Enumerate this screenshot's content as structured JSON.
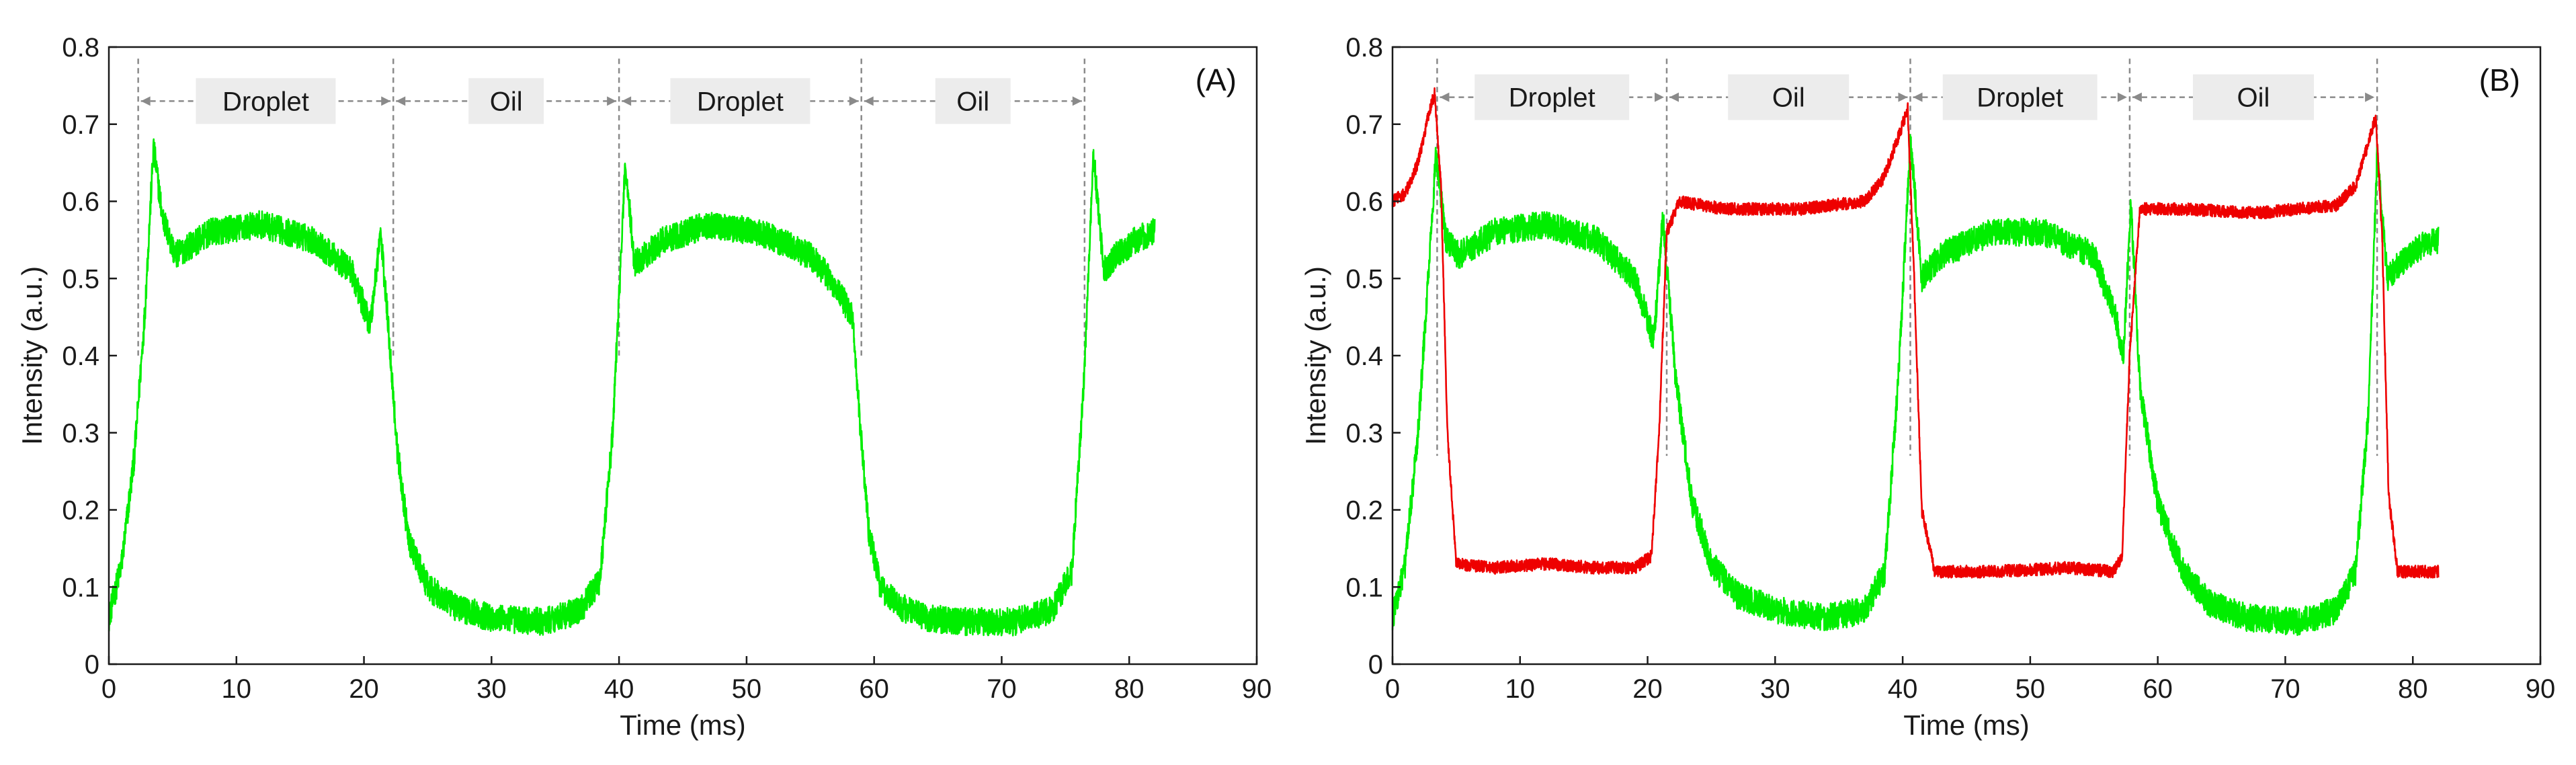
{
  "chart_data": [
    {
      "panel": "(A)",
      "type": "line",
      "xlabel": "Time (ms)",
      "ylabel": "Intensity (a.u.)",
      "xlim": [
        0,
        90
      ],
      "ylim": [
        0,
        0.8
      ],
      "xticks": [
        "0",
        "10",
        "20",
        "30",
        "40",
        "50",
        "60",
        "70",
        "80",
        "90"
      ],
      "yticks": [
        "0",
        "0.1",
        "0.2",
        "0.3",
        "0.4",
        "0.5",
        "0.6",
        "0.7",
        "0.8"
      ],
      "grid": false,
      "regions": [
        {
          "label": "Droplet",
          "start": 2.3,
          "end": 22.3
        },
        {
          "label": "Oil",
          "start": 22.3,
          "end": 40.0
        },
        {
          "label": "Droplet",
          "start": 40.0,
          "end": 59.0
        },
        {
          "label": "Oil",
          "start": 59.0,
          "end": 76.5
        }
      ],
      "region_arrow_y": 0.73,
      "series": [
        {
          "name": "green",
          "color": "#00ee00",
          "noise": 0.018,
          "x": [
            0,
            1,
            2,
            2.8,
            3.5,
            4.2,
            5.2,
            8,
            12,
            16,
            19,
            20.5,
            21.3,
            21.9,
            22.6,
            23.5,
            25,
            27,
            30,
            34,
            37,
            38.5,
            39.5,
            40.5,
            41.2,
            42,
            43.5,
            47,
            51,
            55,
            57,
            58.3,
            58.9,
            59.6,
            60.5,
            62,
            64,
            67,
            71,
            74,
            75.5,
            76.4,
            77.2,
            78,
            79,
            80.5,
            82
          ],
          "y": [
            0.06,
            0.13,
            0.27,
            0.45,
            0.67,
            0.58,
            0.53,
            0.56,
            0.57,
            0.55,
            0.51,
            0.44,
            0.56,
            0.44,
            0.28,
            0.16,
            0.1,
            0.075,
            0.06,
            0.055,
            0.07,
            0.11,
            0.3,
            0.65,
            0.52,
            0.53,
            0.55,
            0.57,
            0.56,
            0.53,
            0.49,
            0.45,
            0.31,
            0.17,
            0.1,
            0.075,
            0.06,
            0.055,
            0.055,
            0.07,
            0.12,
            0.35,
            0.66,
            0.51,
            0.53,
            0.55,
            0.56
          ]
        }
      ]
    },
    {
      "panel": "(B)",
      "type": "line",
      "xlabel": "Time (ms)",
      "ylabel": "Intensity (a.u.)",
      "xlim": [
        0,
        90
      ],
      "ylim": [
        0,
        0.8
      ],
      "xticks": [
        "0",
        "10",
        "20",
        "30",
        "40",
        "50",
        "60",
        "70",
        "80",
        "90"
      ],
      "yticks": [
        "0",
        "0.1",
        "0.2",
        "0.3",
        "0.4",
        "0.5",
        "0.6",
        "0.7",
        "0.8"
      ],
      "grid": false,
      "regions": [
        {
          "label": "Droplet",
          "start": 3.5,
          "end": 21.5
        },
        {
          "label": "Oil",
          "start": 21.5,
          "end": 40.6
        },
        {
          "label": "Droplet",
          "start": 40.6,
          "end": 57.8
        },
        {
          "label": "Oil",
          "start": 57.8,
          "end": 77.2
        }
      ],
      "region_arrow_y": 0.735,
      "series": [
        {
          "name": "green",
          "color": "#00ee00",
          "noise": 0.018,
          "x": [
            0,
            1,
            2,
            2.8,
            3.4,
            4.2,
            5.2,
            8,
            12,
            16,
            19,
            20.5,
            21.2,
            22.2,
            23.5,
            25,
            27,
            30,
            34,
            37,
            38.6,
            39.7,
            40.6,
            41.5,
            43,
            47,
            51,
            55,
            56.7,
            57.3,
            57.9,
            58.6,
            60,
            62,
            64,
            67,
            71,
            74,
            75.5,
            76.5,
            77.2,
            78,
            79,
            80.5,
            82
          ],
          "y": [
            0.06,
            0.13,
            0.3,
            0.5,
            0.66,
            0.55,
            0.53,
            0.56,
            0.57,
            0.55,
            0.5,
            0.42,
            0.58,
            0.37,
            0.21,
            0.13,
            0.09,
            0.07,
            0.06,
            0.07,
            0.12,
            0.38,
            0.68,
            0.5,
            0.53,
            0.56,
            0.56,
            0.53,
            0.45,
            0.4,
            0.6,
            0.36,
            0.21,
            0.12,
            0.08,
            0.06,
            0.055,
            0.07,
            0.12,
            0.32,
            0.66,
            0.5,
            0.52,
            0.54,
            0.55
          ]
        },
        {
          "name": "red",
          "color": "#ee0000",
          "noise": 0.008,
          "x": [
            0,
            1,
            2,
            2.8,
            3.3,
            3.8,
            4.3,
            5,
            8,
            12,
            16,
            19,
            20.3,
            20.9,
            21.5,
            22.5,
            26,
            32,
            37,
            38.5,
            39.8,
            40.4,
            40.9,
            41.5,
            42.5,
            47,
            53,
            56.5,
            57.2,
            57.8,
            58.6,
            62,
            68,
            74,
            75.5,
            76.6,
            77.1,
            77.6,
            78.1,
            78.8,
            80.5,
            82
          ],
          "y": [
            0.6,
            0.61,
            0.65,
            0.71,
            0.74,
            0.62,
            0.3,
            0.13,
            0.125,
            0.13,
            0.125,
            0.125,
            0.14,
            0.3,
            0.56,
            0.6,
            0.59,
            0.59,
            0.6,
            0.63,
            0.69,
            0.72,
            0.5,
            0.2,
            0.12,
            0.12,
            0.125,
            0.12,
            0.14,
            0.4,
            0.59,
            0.59,
            0.585,
            0.595,
            0.62,
            0.68,
            0.71,
            0.55,
            0.22,
            0.12,
            0.12,
            0.12
          ]
        }
      ]
    }
  ]
}
